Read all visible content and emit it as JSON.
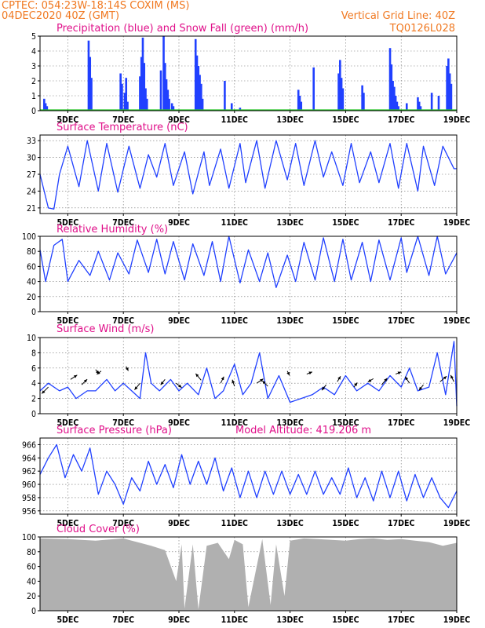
{
  "header": {
    "line1_left": "CPTEC:   054:23W-18:14S   COXIM (MS)",
    "line2_left": "04DEC2020 40Z (GMT)",
    "line1_right": "Vertical Grid Line: 40Z",
    "line2_right": "TQ0126L028"
  },
  "colors": {
    "header": "#f07820",
    "title": "#e0108a",
    "series": "#2040ff",
    "snow": "#20c020",
    "cloud": "#b0b0b0",
    "arrow": "#000000"
  },
  "x_axis": {
    "tick_labels": [
      "5DEC",
      "7DEC",
      "9DEC",
      "11DEC",
      "13DEC",
      "15DEC",
      "17DEC",
      "19DEC"
    ],
    "tick_days": [
      5,
      7,
      9,
      11,
      13,
      15,
      17,
      19
    ],
    "range_days": [
      4,
      19
    ]
  },
  "chart_data": [
    {
      "type": "bar",
      "title": "Precipitation (blue) and Snow Fall (green) (mm/h)",
      "ylim": [
        0,
        5
      ],
      "yticks": [
        "0",
        "1",
        "2",
        "3",
        "4",
        "5"
      ],
      "grid": true,
      "series": [
        {
          "name": "Precipitation",
          "x": [
            4.15,
            4.2,
            4.25,
            5.75,
            5.8,
            5.85,
            6.9,
            6.95,
            7.05,
            7.1,
            7.15,
            7.6,
            7.65,
            7.7,
            7.75,
            7.8,
            7.85,
            8.35,
            8.45,
            8.5,
            8.55,
            8.6,
            8.65,
            8.75,
            8.8,
            9.6,
            9.65,
            9.7,
            9.75,
            9.8,
            9.85,
            10.65,
            10.9,
            11.2,
            13.3,
            13.35,
            13.4,
            13.85,
            14.75,
            14.8,
            14.85,
            14.9,
            15.6,
            15.65,
            16.6,
            16.65,
            16.7,
            16.75,
            16.8,
            16.85,
            16.9,
            17.2,
            17.6,
            17.65,
            17.7,
            18.1,
            18.35,
            18.65,
            18.7,
            18.75,
            18.8
          ],
          "values": [
            0.8,
            0.5,
            0.3,
            4.7,
            3.6,
            2.2,
            2.5,
            1.8,
            1.2,
            2.2,
            0.6,
            2.3,
            3.6,
            4.9,
            3.2,
            1.5,
            0.8,
            2.7,
            5,
            3.2,
            2.1,
            1.4,
            0.8,
            0.5,
            0.3,
            4.8,
            3.7,
            3,
            2.4,
            1.8,
            0.8,
            2,
            0.5,
            0.2,
            1.4,
            1,
            0.6,
            2.9,
            2.5,
            3.4,
            2.2,
            1.5,
            1.7,
            1.2,
            4.2,
            3.1,
            2,
            1.6,
            1,
            0.6,
            0.3,
            0.5,
            0.9,
            0.6,
            0.3,
            1.2,
            1,
            3,
            3.5,
            2.5,
            1.8
          ]
        },
        {
          "name": "Snow Fall",
          "x": [
            4,
            19
          ],
          "values": [
            0,
            0
          ]
        }
      ]
    },
    {
      "type": "line",
      "title": "Surface Temperature (nC)",
      "ylim": [
        20,
        34
      ],
      "yticks": [
        "21",
        "24",
        "27",
        "30",
        "33"
      ],
      "grid": true,
      "series": [
        {
          "name": "Temperature",
          "x": [
            4,
            4.3,
            4.5,
            4.7,
            5,
            5.4,
            5.7,
            6.1,
            6.4,
            6.8,
            7.2,
            7.6,
            7.9,
            8.2,
            8.5,
            8.8,
            9.2,
            9.5,
            9.9,
            10.1,
            10.5,
            10.8,
            11.2,
            11.4,
            11.8,
            12.1,
            12.5,
            12.9,
            13.2,
            13.5,
            13.9,
            14.2,
            14.5,
            14.9,
            15.2,
            15.5,
            15.9,
            16.2,
            16.6,
            16.9,
            17.2,
            17.6,
            17.8,
            18.2,
            18.5,
            18.9,
            19
          ],
          "values": [
            27,
            21,
            20.8,
            27,
            32,
            24.8,
            33,
            24,
            32.5,
            23.8,
            32,
            24.5,
            30.5,
            26.5,
            32.5,
            25,
            31,
            23.5,
            31,
            25,
            31.5,
            24.5,
            32.5,
            25.5,
            33,
            24.5,
            33,
            26,
            32.5,
            25,
            33,
            26.5,
            31,
            25,
            32.5,
            25.5,
            31,
            25.5,
            32.5,
            24.5,
            32.5,
            24,
            32,
            25,
            32,
            28,
            28
          ]
        }
      ]
    },
    {
      "type": "line",
      "title": "Relative Humidity (%)",
      "ylim": [
        0,
        100
      ],
      "yticks": [
        "0",
        "20",
        "40",
        "60",
        "80",
        "100"
      ],
      "grid": true,
      "series": [
        {
          "name": "Relative Humidity",
          "x": [
            4,
            4.2,
            4.5,
            4.8,
            5,
            5.4,
            5.8,
            6.1,
            6.5,
            6.8,
            7.2,
            7.5,
            7.9,
            8.2,
            8.5,
            8.8,
            9.2,
            9.5,
            9.9,
            10.2,
            10.5,
            10.8,
            11.2,
            11.5,
            11.9,
            12.2,
            12.5,
            12.9,
            13.2,
            13.5,
            13.9,
            14.2,
            14.6,
            14.9,
            15.2,
            15.6,
            15.9,
            16.2,
            16.6,
            17,
            17.2,
            17.6,
            18,
            18.3,
            18.6,
            19
          ],
          "values": [
            82,
            40,
            88,
            96,
            40,
            68,
            48,
            80,
            42,
            78,
            50,
            95,
            52,
            96,
            50,
            93,
            42,
            90,
            48,
            93,
            40,
            100,
            38,
            82,
            40,
            78,
            32,
            75,
            40,
            92,
            42,
            98,
            40,
            96,
            42,
            92,
            40,
            95,
            42,
            98,
            52,
            100,
            48,
            100,
            50,
            78
          ]
        }
      ]
    },
    {
      "type": "line",
      "title": "Surface Wind (m/s)",
      "ylim": [
        0,
        10
      ],
      "yticks": [
        "0",
        "2",
        "4",
        "6",
        "8",
        "10"
      ],
      "grid": true,
      "series": [
        {
          "name": "Wind Speed",
          "x": [
            4,
            4.3,
            4.7,
            5,
            5.3,
            5.7,
            6,
            6.4,
            6.7,
            7,
            7.3,
            7.6,
            7.8,
            8,
            8.3,
            8.7,
            9,
            9.3,
            9.7,
            10,
            10.3,
            10.6,
            11,
            11.3,
            11.6,
            11.9,
            12.2,
            12.6,
            13,
            13.4,
            13.8,
            14.2,
            14.6,
            15,
            15.4,
            15.8,
            16.2,
            16.6,
            17,
            17.3,
            17.6,
            18,
            18.3,
            18.6,
            18.9,
            19
          ],
          "values": [
            3,
            4,
            3,
            3.5,
            2,
            3,
            3,
            4.5,
            3,
            4,
            3,
            2,
            8,
            4,
            3,
            4.5,
            3,
            4,
            2.5,
            6,
            2,
            3,
            6.5,
            2.5,
            4,
            8,
            2,
            5,
            1.5,
            2,
            2.5,
            3.5,
            2.5,
            5,
            3,
            4,
            3,
            5,
            3.5,
            6,
            3,
            3.5,
            8,
            2.5,
            9.5,
            1
          ]
        }
      ],
      "arrows": [
        [
          4.3,
          3.5,
          -0.6,
          -0.6
        ],
        [
          5.1,
          4.5,
          0.6,
          0.4
        ],
        [
          5.5,
          3.8,
          0.5,
          0.5
        ],
        [
          6,
          5.8,
          0.3,
          -0.4
        ],
        [
          6.2,
          5.6,
          -0.4,
          -0.3
        ],
        [
          7.1,
          6.2,
          0.2,
          -0.4
        ],
        [
          7.6,
          4,
          -0.5,
          -0.6
        ],
        [
          8.5,
          4.5,
          -0.4,
          -0.5
        ],
        [
          8.9,
          4,
          0.5,
          -0.4
        ],
        [
          9.8,
          4.4,
          -0.5,
          0.6
        ],
        [
          10.5,
          4,
          0.3,
          0.6
        ],
        [
          11,
          3.6,
          -0.2,
          0.6
        ],
        [
          11.8,
          4,
          0.6,
          0.4
        ],
        [
          12.2,
          3.6,
          -0.5,
          0.5
        ],
        [
          12.9,
          5.6,
          0.2,
          -0.4
        ],
        [
          13.6,
          5.2,
          0.5,
          0.2
        ],
        [
          14.3,
          3.8,
          -0.4,
          -0.5
        ],
        [
          14.7,
          4.2,
          0.3,
          0.5
        ],
        [
          15.3,
          3.5,
          0.3,
          0.4
        ],
        [
          16,
          4.6,
          -0.5,
          -0.3
        ],
        [
          16.3,
          3.8,
          0.5,
          0.6
        ],
        [
          16.8,
          5.2,
          0.5,
          0.2
        ],
        [
          17.3,
          4,
          -0.4,
          0.6
        ],
        [
          17.8,
          3.8,
          -0.4,
          -0.5
        ],
        [
          18.4,
          4.2,
          0.6,
          0.5
        ],
        [
          18.9,
          4.2,
          -0.3,
          0.6
        ]
      ]
    },
    {
      "type": "line",
      "title": "Surface Pressure (hPa)",
      "annotation": "Model Altitude: 419.206 m",
      "ylim": [
        955.5,
        967
      ],
      "yticks": [
        "956",
        "958",
        "960",
        "962",
        "964",
        "966"
      ],
      "grid": true,
      "series": [
        {
          "name": "Surface Pressure",
          "x": [
            4,
            4.3,
            4.6,
            4.9,
            5.2,
            5.5,
            5.8,
            6.1,
            6.4,
            6.7,
            7,
            7.3,
            7.6,
            7.9,
            8.2,
            8.5,
            8.8,
            9.1,
            9.4,
            9.7,
            10,
            10.3,
            10.6,
            10.9,
            11.2,
            11.5,
            11.8,
            12.1,
            12.4,
            12.7,
            13,
            13.3,
            13.6,
            13.9,
            14.2,
            14.5,
            14.8,
            15.1,
            15.4,
            15.7,
            16,
            16.3,
            16.6,
            16.9,
            17.2,
            17.5,
            17.8,
            18.1,
            18.4,
            18.7,
            19
          ],
          "values": [
            961.5,
            964,
            966,
            961,
            964.5,
            962,
            965.5,
            958.5,
            962,
            960,
            957,
            961,
            959,
            963.5,
            960,
            963,
            959.5,
            964.5,
            960,
            963.5,
            960,
            964,
            959,
            962.5,
            958,
            962,
            958,
            962,
            958.5,
            962,
            958.5,
            961.5,
            958.5,
            962,
            958.5,
            961,
            958.5,
            962.5,
            958,
            961,
            957.5,
            962,
            958,
            962,
            957.5,
            961.5,
            958,
            961,
            958,
            956.5,
            959
          ]
        }
      ]
    },
    {
      "type": "area",
      "title": "Cloud Cover (%)",
      "ylim": [
        0,
        100
      ],
      "yticks": [
        "0",
        "20",
        "40",
        "60",
        "80",
        "100"
      ],
      "grid": true,
      "series": [
        {
          "name": "Cloud Cover",
          "x": [
            4,
            5,
            6,
            7,
            7.3,
            7.6,
            8,
            8.5,
            8.9,
            9.1,
            9.2,
            9.5,
            9.7,
            10,
            10.4,
            10.8,
            11,
            11.3,
            11.5,
            12,
            12.3,
            12.5,
            12.8,
            13,
            13.5,
            14,
            14.5,
            15,
            15.5,
            16,
            16.5,
            17,
            17.5,
            18,
            18.5,
            19
          ],
          "values": [
            98,
            97,
            95,
            98,
            95,
            92,
            88,
            82,
            40,
            90,
            3,
            90,
            2,
            88,
            92,
            70,
            96,
            90,
            5,
            97,
            8,
            90,
            20,
            95,
            98,
            97,
            96,
            95,
            97,
            98,
            96,
            97,
            95,
            93,
            88,
            92
          ]
        }
      ]
    }
  ]
}
